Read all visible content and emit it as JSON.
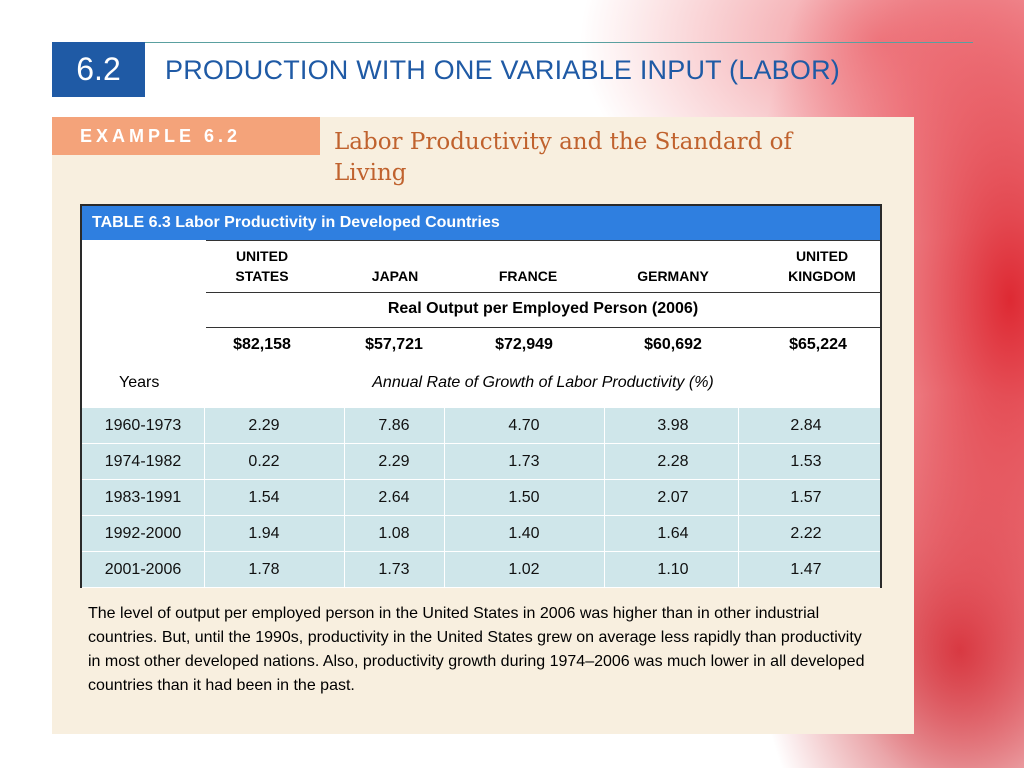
{
  "slide": {
    "number": "6.2",
    "title": "PRODUCTION WITH ONE VARIABLE INPUT (LABOR)"
  },
  "example": {
    "tab_label": "EXAMPLE 6.2",
    "title": "Labor Productivity and the Standard of Living"
  },
  "table": {
    "caption": "TABLE 6.3   Labor Productivity in Developed Countries",
    "countries": [
      "UNITED STATES",
      "JAPAN",
      "FRANCE",
      "GERMANY",
      "UNITED KINGDOM"
    ],
    "output_heading": "Real Output per Employed Person (2006)",
    "output_values": [
      "$82,158",
      "$57,721",
      "$72,949",
      "$60,692",
      "$65,224"
    ],
    "years_label": "Years",
    "growth_heading": "Annual Rate of Growth of Labor Productivity (%)",
    "rows": [
      {
        "period": "1960-1973",
        "values": [
          "2.29",
          "7.86",
          "4.70",
          "3.98",
          "2.84"
        ]
      },
      {
        "period": "1974-1982",
        "values": [
          "0.22",
          "2.29",
          "1.73",
          "2.28",
          "1.53"
        ]
      },
      {
        "period": "1983-1991",
        "values": [
          "1.54",
          "2.64",
          "1.50",
          "2.07",
          "1.57"
        ]
      },
      {
        "period": "1992-2000",
        "values": [
          "1.94",
          "1.08",
          "1.40",
          "1.64",
          "2.22"
        ]
      },
      {
        "period": "2001-2006",
        "values": [
          "1.78",
          "1.73",
          "1.02",
          "1.10",
          "1.47"
        ]
      }
    ]
  },
  "caption_text": "The level of output per employed person in the United States in 2006 was higher than in other industrial countries.  But, until the 1990s, productivity in the United States grew on average less rapidly than productivity in most other developed nations. Also, productivity growth during 1974–2006 was much lower in all developed countries than it had been in the past."
}
